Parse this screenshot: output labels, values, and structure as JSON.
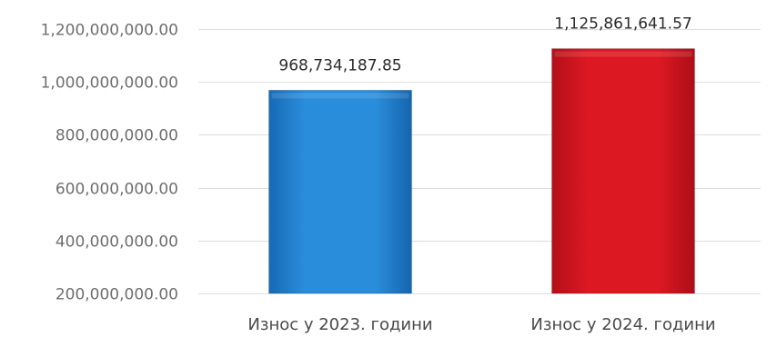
{
  "chart_data": {
    "type": "bar",
    "title": "",
    "xlabel": "",
    "ylabel": "",
    "categories": [
      "Износ у 2023. години",
      "Износ у 2024. години"
    ],
    "values": [
      968734187.85,
      1125861641.57
    ],
    "data_labels": [
      "968,734,187.85",
      "1,125,861,641.57"
    ],
    "ylim": [
      200000000,
      1200000000
    ],
    "y_ticks": [
      200000000,
      400000000,
      600000000,
      800000000,
      1000000000,
      1200000000
    ],
    "y_tick_labels": [
      "200,000,000.00",
      "400,000,000.00",
      "600,000,000.00",
      "800,000,000.00",
      "1,000,000,000.00",
      "1,200,000,000.00"
    ],
    "bar_colors": [
      "#1f7fcf",
      "#d0141f"
    ],
    "grid": true,
    "legend": "none"
  }
}
